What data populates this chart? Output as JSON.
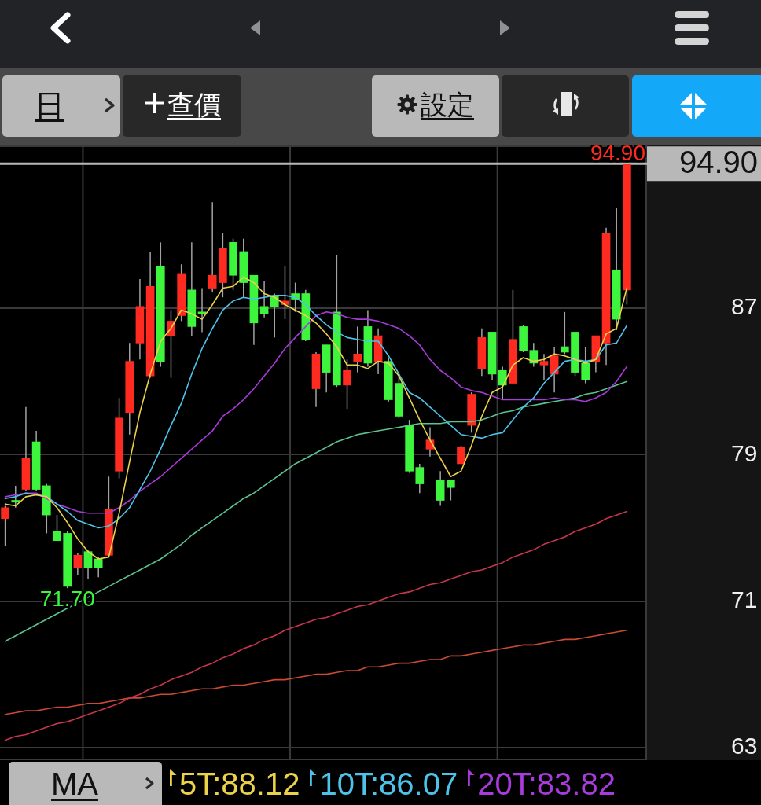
{
  "chart_data": {
    "type": "candlestick",
    "categories": [
      null,
      null,
      null,
      null,
      null,
      null,
      null,
      null,
      null,
      null,
      null,
      null,
      null,
      null,
      null,
      null,
      null,
      null,
      null,
      null,
      null,
      null,
      null,
      null,
      null,
      null,
      null,
      null,
      null,
      null,
      null,
      null,
      null,
      null,
      null,
      null,
      null,
      null,
      null,
      null,
      null,
      null,
      null,
      null,
      null,
      null,
      null,
      null,
      null,
      null,
      null,
      null,
      null,
      null,
      null,
      null,
      null,
      null,
      null,
      null,
      null
    ],
    "ohlc": [
      [
        75.5,
        76.2,
        74.0,
        76.1
      ],
      [
        76.5,
        77.3,
        76.1,
        76.4
      ],
      [
        77.1,
        81.6,
        77.0,
        78.8
      ],
      [
        79.7,
        80.3,
        77.0,
        77.1
      ],
      [
        77.3,
        77.4,
        74.7,
        75.7
      ],
      [
        74.8,
        75.7,
        74.3,
        74.3
      ],
      [
        74.7,
        74.8,
        71.7,
        71.8
      ],
      [
        72.8,
        73.6,
        72.4,
        73.5
      ],
      [
        73.7,
        73.8,
        72.2,
        72.8
      ],
      [
        73.3,
        73.4,
        72.3,
        72.8
      ],
      [
        73.5,
        77.8,
        73.5,
        76.0
      ],
      [
        78.1,
        82.1,
        77.7,
        81.0
      ],
      [
        81.3,
        85.1,
        80.1,
        84.1
      ],
      [
        85.1,
        88.6,
        84.2,
        87.1
      ],
      [
        83.3,
        90.1,
        83.2,
        88.2
      ],
      [
        89.3,
        90.6,
        83.8,
        84.1
      ],
      [
        85.5,
        86.9,
        83.2,
        86.3
      ],
      [
        86.6,
        89.4,
        86.3,
        88.9
      ],
      [
        88.0,
        90.6,
        85.5,
        86.0
      ],
      [
        86.8,
        88.1,
        85.7,
        86.7
      ],
      [
        88.1,
        92.8,
        87.9,
        88.8
      ],
      [
        88.4,
        91.1,
        87.6,
        90.3
      ],
      [
        90.6,
        90.8,
        88.0,
        88.8
      ],
      [
        90.1,
        90.8,
        87.6,
        88.4
      ],
      [
        88.8,
        88.8,
        85.0,
        86.2
      ],
      [
        87.1,
        88.5,
        86.5,
        86.7
      ],
      [
        87.7,
        87.8,
        85.4,
        87.1
      ],
      [
        87.2,
        89.3,
        86.4,
        87.4
      ],
      [
        87.8,
        88.4,
        86.8,
        87.5
      ],
      [
        87.8,
        88.0,
        85.2,
        85.3
      ],
      [
        82.6,
        84.6,
        81.6,
        84.5
      ],
      [
        85.0,
        85.0,
        82.4,
        83.5
      ],
      [
        86.8,
        89.9,
        82.7,
        82.8
      ],
      [
        82.8,
        84.2,
        81.5,
        83.6
      ],
      [
        84.1,
        86.0,
        83.5,
        84.5
      ],
      [
        86.0,
        86.9,
        83.8,
        84.0
      ],
      [
        84.1,
        85.9,
        83.4,
        85.5
      ],
      [
        84.1,
        84.3,
        81.9,
        82.0
      ],
      [
        82.9,
        83.4,
        81.0,
        81.1
      ],
      [
        80.6,
        80.9,
        78.0,
        78.1
      ],
      [
        78.3,
        78.5,
        76.9,
        77.4
      ],
      [
        79.3,
        80.5,
        78.9,
        79.8
      ],
      [
        77.6,
        78.1,
        76.2,
        76.5
      ],
      [
        77.6,
        77.6,
        76.5,
        77.2
      ],
      [
        78.5,
        79.5,
        78.5,
        79.4
      ],
      [
        80.6,
        82.4,
        80.2,
        82.3
      ],
      [
        83.7,
        85.9,
        83.3,
        85.4
      ],
      [
        85.7,
        85.7,
        83.1,
        83.4
      ],
      [
        83.6,
        83.8,
        82.0,
        82.8
      ],
      [
        82.9,
        88.0,
        82.9,
        85.3
      ],
      [
        86.0,
        86.1,
        84.6,
        84.7
      ],
      [
        84.7,
        85.1,
        83.8,
        84.0
      ],
      [
        83.9,
        84.5,
        83.1,
        84.1
      ],
      [
        83.4,
        84.9,
        82.4,
        84.4
      ],
      [
        84.9,
        86.8,
        84.5,
        84.6
      ],
      [
        85.7,
        85.7,
        83.3,
        83.5
      ],
      [
        84.0,
        84.9,
        82.9,
        83.1
      ],
      [
        84.1,
        85.5,
        83.5,
        85.5
      ],
      [
        85.1,
        91.4,
        83.9,
        91.1
      ],
      [
        89.1,
        92.5,
        85.8,
        86.4
      ],
      [
        88.0,
        94.9,
        87.2,
        94.9
      ]
    ],
    "colors": [
      "#ff2a20",
      "#3df53d",
      "#ff2a20",
      "#3df53d",
      "#3df53d",
      "#3df53d",
      "#3df53d",
      "#ff2a20",
      "#3df53d",
      "#3df53d",
      "#ff2a20",
      "#ff2a20",
      "#ff2a20",
      "#ff2a20",
      "#ff2a20",
      "#3df53d",
      "#ff2a20",
      "#ff2a20",
      "#3df53d",
      "#3df53d",
      "#ff2a20",
      "#ff2a20",
      "#3df53d",
      "#3df53d",
      "#3df53d",
      "#3df53d",
      "#3df53d",
      "#ff2a20",
      "#3df53d",
      "#3df53d",
      "#ff2a20",
      "#3df53d",
      "#3df53d",
      "#ff2a20",
      "#ff2a20",
      "#3df53d",
      "#ff2a20",
      "#3df53d",
      "#3df53d",
      "#3df53d",
      "#3df53d",
      "#ff2a20",
      "#3df53d",
      "#3df53d",
      "#ff2a20",
      "#ff2a20",
      "#ff2a20",
      "#3df53d",
      "#3df53d",
      "#ff2a20",
      "#3df53d",
      "#3df53d",
      "#ff2a20",
      "#ff2a20",
      "#3df53d",
      "#3df53d",
      "#3df53d",
      "#ff2a20",
      "#ff2a20",
      "#3df53d",
      "#ff2a20"
    ],
    "series": [
      {
        "type": "line",
        "name": "5T:88.12",
        "color": "#ecd24a",
        "values": [
          76.3,
          76.2,
          76.7,
          76.8,
          76.7,
          76.1,
          75.3,
          74.4,
          73.7,
          73.3,
          73.4,
          75.8,
          78.6,
          81.3,
          83.4,
          85.2,
          85.9,
          86.9,
          86.7,
          86.4,
          87.2,
          88.1,
          88.2,
          88.7,
          88.4,
          87.8,
          87.6,
          87.2,
          86.9,
          86.6,
          86.2,
          85.6,
          84.9,
          83.9,
          83.9,
          83.7,
          84.1,
          84.0,
          83.3,
          82.1,
          80.9,
          79.8,
          78.8,
          77.8,
          78.1,
          79.5,
          81.1,
          82.4,
          82.7,
          83.9,
          84.3,
          84.1,
          84.2,
          84.5,
          84.4,
          84.2,
          84.0,
          84.2,
          85.6,
          85.9,
          88.12
        ]
      },
      {
        "type": "line",
        "name": "10T:86.07",
        "color": "#4ec3ea",
        "values": [
          76.6,
          76.7,
          76.9,
          76.8,
          76.7,
          76.3,
          75.9,
          75.4,
          75.2,
          75.0,
          75.1,
          75.5,
          76.1,
          77.1,
          78.1,
          79.3,
          80.6,
          81.8,
          83.4,
          84.8,
          85.9,
          86.9,
          87.4,
          87.6,
          87.5,
          87.6,
          87.7,
          87.7,
          87.6,
          87.2,
          86.6,
          86.1,
          85.7,
          85.4,
          85.3,
          85.2,
          85.2,
          84.4,
          83.4,
          82.4,
          82.1,
          81.6,
          81.1,
          80.6,
          80.1,
          80.0,
          79.9,
          80.1,
          80.2,
          80.9,
          81.6,
          82.1,
          82.9,
          83.5,
          84.1,
          84.2,
          84.1,
          84.2,
          85.0,
          85.1,
          86.07
        ]
      },
      {
        "type": "line",
        "name": "20T:83.82",
        "color": "#a83bdc",
        "values": [
          76.7,
          76.8,
          76.9,
          76.9,
          76.6,
          76.3,
          76.1,
          75.9,
          75.8,
          75.8,
          75.8,
          76.1,
          76.5,
          77.0,
          77.4,
          77.8,
          78.3,
          78.8,
          79.3,
          79.8,
          80.3,
          81.1,
          81.5,
          82.0,
          82.6,
          83.3,
          84.0,
          84.8,
          85.4,
          86.0,
          86.6,
          86.8,
          86.7,
          86.5,
          86.4,
          86.4,
          86.3,
          86.1,
          85.9,
          85.5,
          85.0,
          84.2,
          83.6,
          83.2,
          82.7,
          82.5,
          82.4,
          82.2,
          82.0,
          82.0,
          82.0,
          82.0,
          82.0,
          82.1,
          82.0,
          82.0,
          81.9,
          82.1,
          82.4,
          83.0,
          83.82
        ]
      },
      {
        "type": "line",
        "color": "#5cc290",
        "values": [
          68.8,
          69.1,
          69.4,
          69.7,
          70.0,
          70.3,
          70.6,
          70.9,
          71.2,
          71.5,
          71.8,
          72.1,
          72.4,
          72.7,
          73.0,
          73.3,
          73.7,
          74.1,
          74.6,
          75.0,
          75.4,
          75.8,
          76.2,
          76.6,
          76.9,
          77.3,
          77.7,
          78.1,
          78.5,
          78.8,
          79.1,
          79.4,
          79.7,
          79.9,
          80.1,
          80.2,
          80.3,
          80.4,
          80.5,
          80.6,
          80.7,
          80.7,
          80.7,
          80.8,
          80.8,
          80.8,
          80.9,
          81.1,
          81.3,
          81.4,
          81.6,
          81.7,
          81.8,
          81.9,
          82.0,
          82.1,
          82.3,
          82.4,
          82.6,
          82.8,
          83.0
        ]
      },
      {
        "type": "line",
        "color": "#c8364e",
        "values": [
          63.4,
          63.6,
          63.7,
          63.9,
          64.1,
          64.3,
          64.4,
          64.6,
          64.8,
          65.0,
          65.2,
          65.4,
          65.7,
          65.9,
          66.2,
          66.4,
          66.7,
          66.9,
          67.1,
          67.4,
          67.6,
          67.9,
          68.1,
          68.4,
          68.6,
          68.9,
          69.1,
          69.4,
          69.6,
          69.8,
          70.0,
          70.1,
          70.3,
          70.5,
          70.7,
          70.8,
          71.0,
          71.2,
          71.4,
          71.5,
          71.7,
          71.9,
          72.0,
          72.2,
          72.4,
          72.6,
          72.7,
          72.9,
          73.1,
          73.4,
          73.6,
          73.8,
          74.1,
          74.3,
          74.5,
          74.8,
          75.0,
          75.2,
          75.5,
          75.7,
          75.9
        ]
      },
      {
        "type": "line",
        "color": "#cc4a34",
        "values": [
          64.8,
          64.9,
          65.0,
          65.0,
          65.1,
          65.2,
          65.2,
          65.3,
          65.4,
          65.4,
          65.5,
          65.6,
          65.7,
          65.7,
          65.8,
          65.9,
          65.9,
          66.0,
          66.1,
          66.2,
          66.2,
          66.3,
          66.4,
          66.4,
          66.5,
          66.6,
          66.7,
          66.7,
          66.8,
          66.9,
          67.0,
          67.0,
          67.1,
          67.2,
          67.2,
          67.4,
          67.4,
          67.5,
          67.6,
          67.6,
          67.7,
          67.8,
          67.8,
          68.0,
          68.0,
          68.1,
          68.2,
          68.3,
          68.4,
          68.5,
          68.6,
          68.6,
          68.7,
          68.8,
          68.9,
          68.9,
          69.0,
          69.1,
          69.2,
          69.3,
          69.4
        ]
      }
    ],
    "ylim": [
      62.3,
      95.9
    ],
    "yticks": [
      63,
      71,
      79,
      87
    ],
    "grid": "y",
    "legend": "bottom",
    "tick_labels": "y",
    "marker": "none",
    "ref_lines": [
      {
        "axis": "y",
        "value": 94.9,
        "label": "94.90",
        "color": "#b8b8b8"
      }
    ],
    "annotations": [
      "日",
      "查價",
      "設定",
      "MA",
      {
        "text": "94.90",
        "y": 94.9
      },
      {
        "text": "71.70",
        "y": 71.7
      }
    ]
  }
}
